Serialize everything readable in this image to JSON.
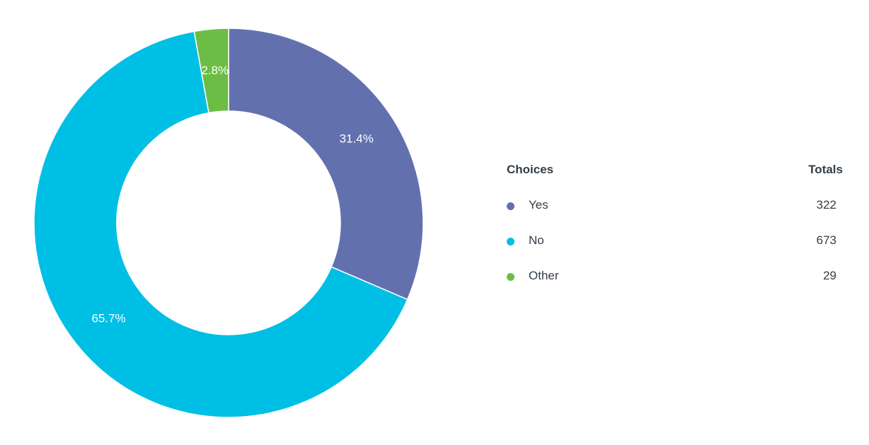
{
  "chart_data": {
    "type": "pie",
    "donut": true,
    "categories": [
      "Yes",
      "No",
      "Other"
    ],
    "values": [
      322,
      673,
      29
    ],
    "percent_labels": [
      "31.4%",
      "65.7%",
      "2.8%"
    ],
    "colors": [
      "#6271ae",
      "#00bfe5",
      "#6cbd45"
    ],
    "legend": {
      "placement": "right",
      "header_choices": "Choices",
      "header_totals": "Totals"
    }
  }
}
